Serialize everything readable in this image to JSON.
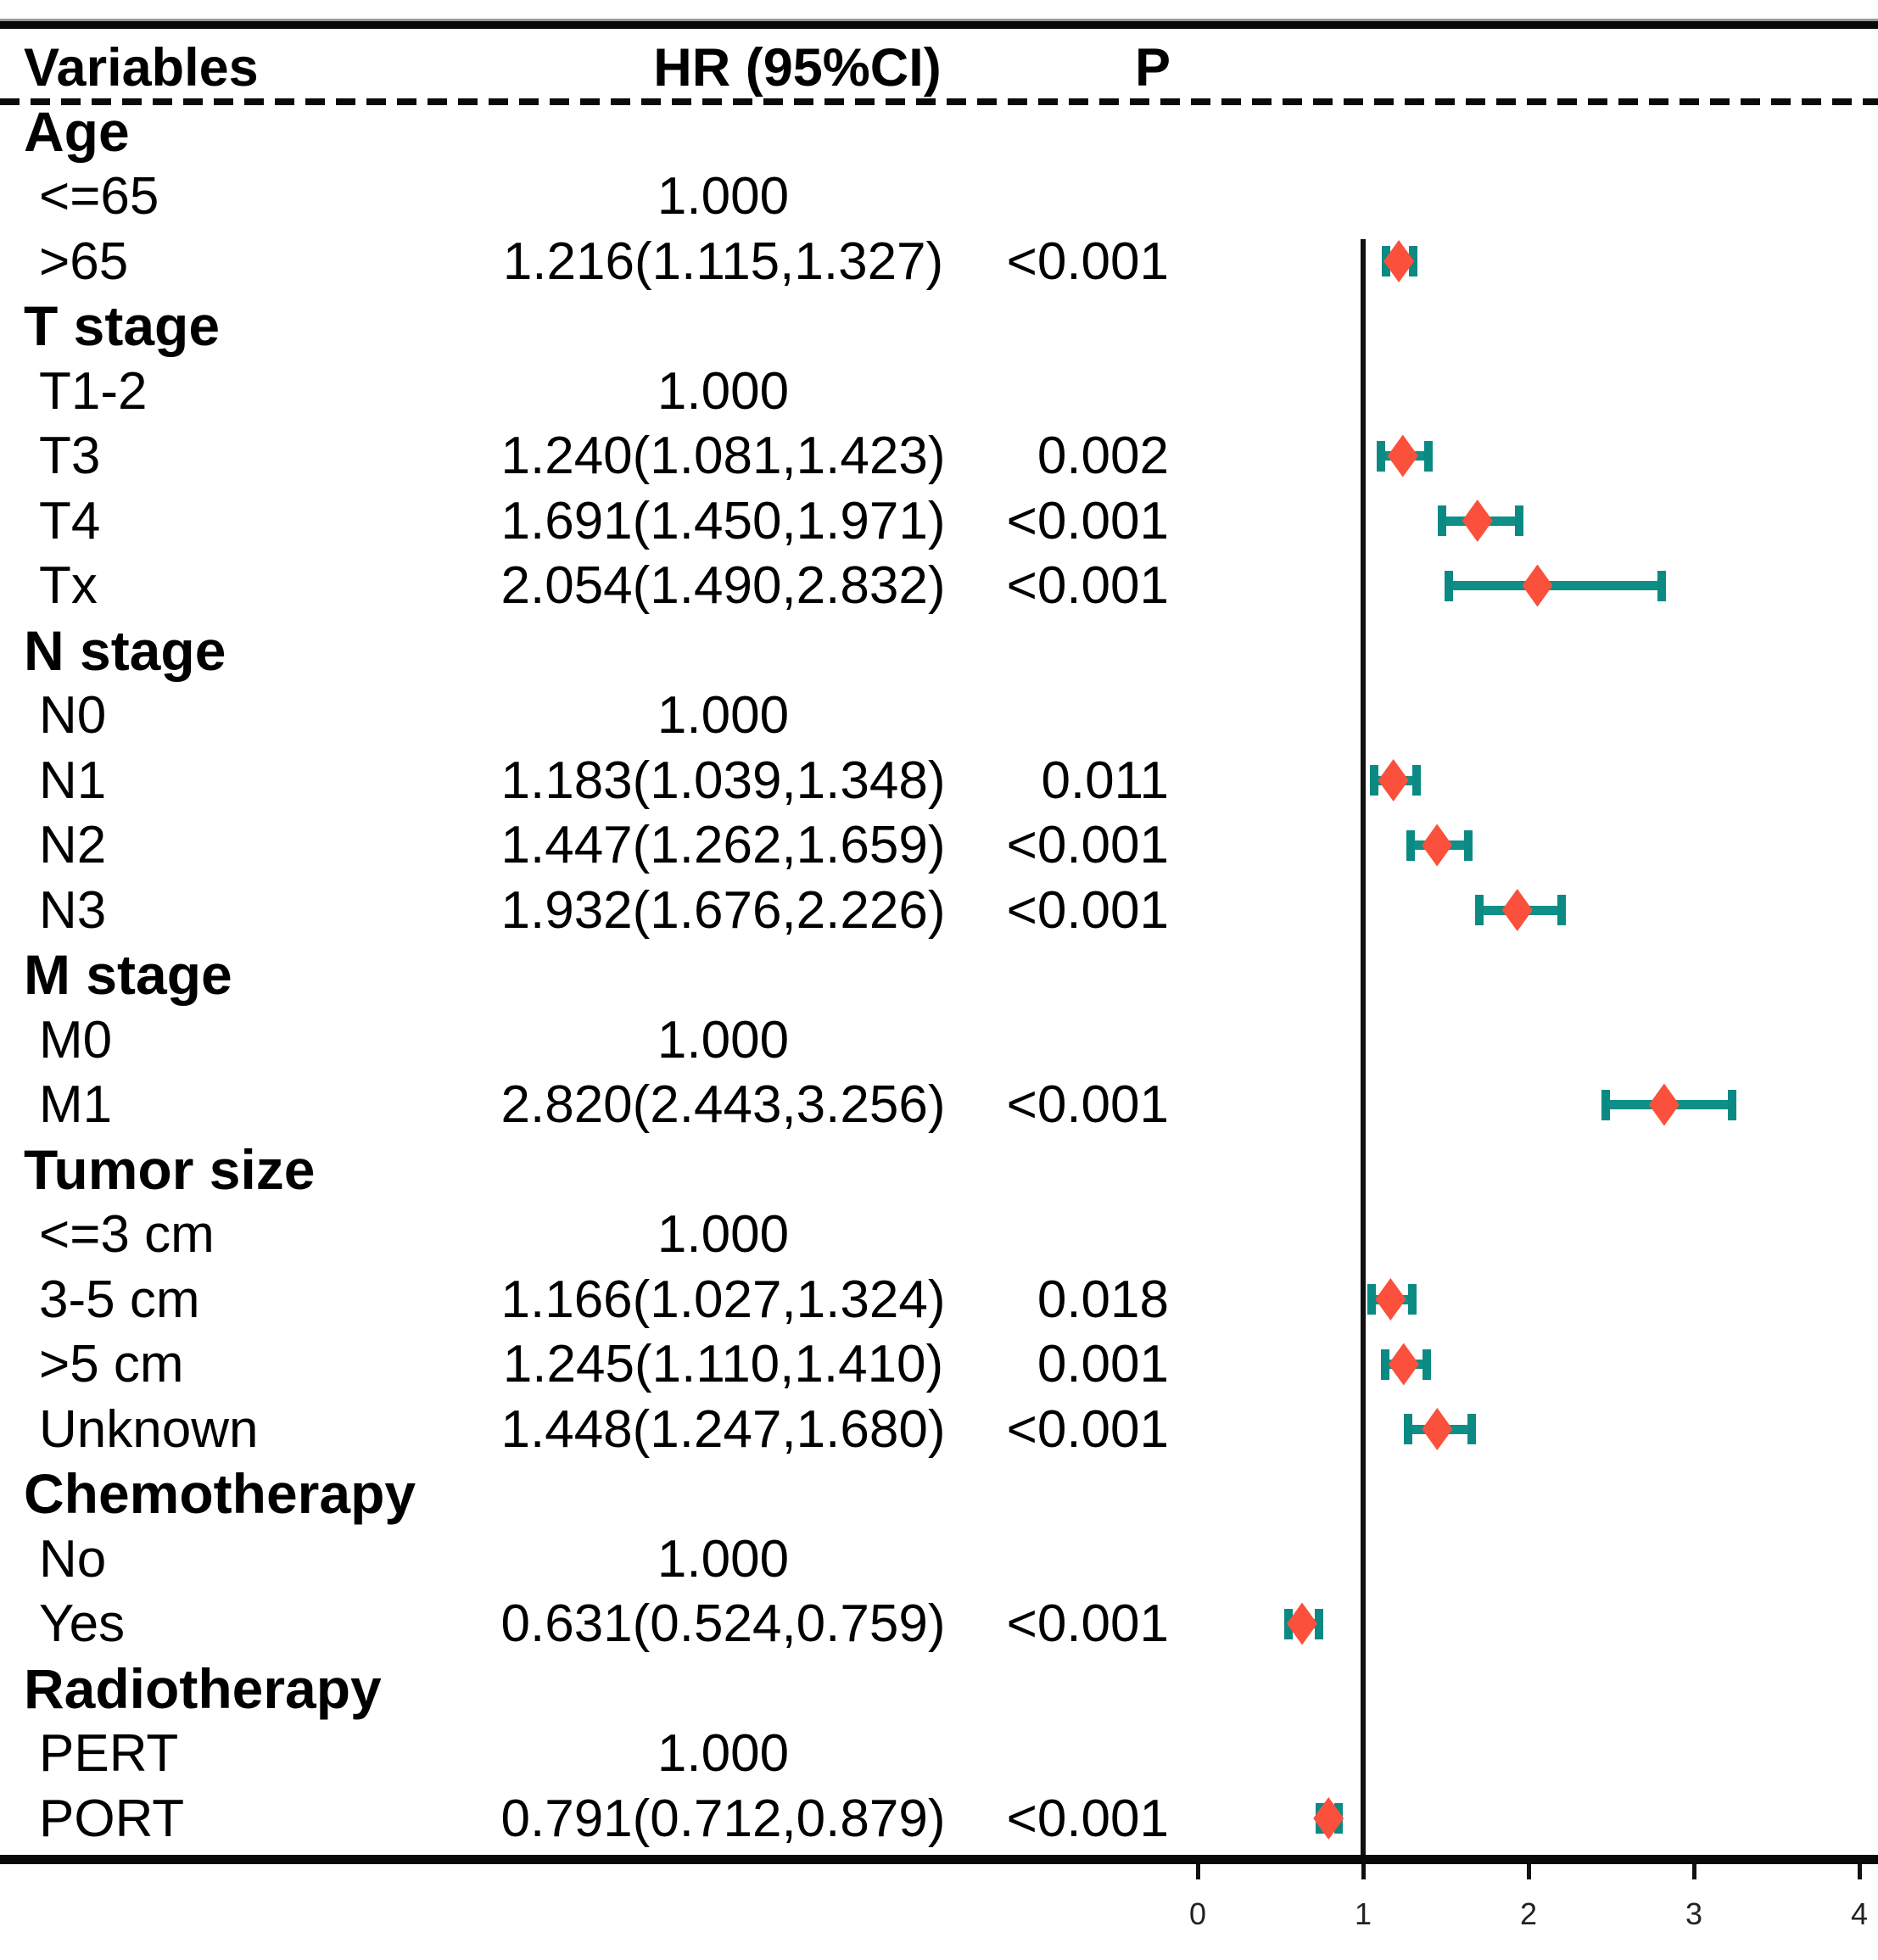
{
  "header": {
    "variables": "Variables",
    "hr": "HR (95%CI)",
    "p": "P"
  },
  "axis": {
    "ticks": [
      "0",
      "1",
      "2",
      "3",
      "4"
    ],
    "min": 0,
    "max": 4,
    "reference_line": 1
  },
  "colors": {
    "ci_bar": "#0E8F88",
    "ci_cap": "#0B8A83",
    "diamond": "#FB503C",
    "rule": "#0a0a0a"
  },
  "rows": [
    {
      "type": "section",
      "label": "Age"
    },
    {
      "type": "item",
      "label": "<=65",
      "hr": "1.000",
      "p": ""
    },
    {
      "type": "item",
      "label": ">65",
      "hr": "1.216(1.115,1.327)",
      "p": "<0.001",
      "est": 1.216,
      "lo": 1.115,
      "hi": 1.327
    },
    {
      "type": "section",
      "label": "T stage"
    },
    {
      "type": "item",
      "label": "T1-2",
      "hr": "1.000",
      "p": ""
    },
    {
      "type": "item",
      "label": "T3",
      "hr": "1.240(1.081,1.423)",
      "p": "0.002",
      "est": 1.24,
      "lo": 1.081,
      "hi": 1.423
    },
    {
      "type": "item",
      "label": "T4",
      "hr": "1.691(1.450,1.971)",
      "p": "<0.001",
      "est": 1.691,
      "lo": 1.45,
      "hi": 1.971
    },
    {
      "type": "item",
      "label": "Tx",
      "hr": "2.054(1.490,2.832)",
      "p": "<0.001",
      "est": 2.054,
      "lo": 1.49,
      "hi": 2.832
    },
    {
      "type": "section",
      "label": "N stage"
    },
    {
      "type": "item",
      "label": "N0",
      "hr": "1.000",
      "p": ""
    },
    {
      "type": "item",
      "label": "N1",
      "hr": "1.183(1.039,1.348)",
      "p": "0.011",
      "est": 1.183,
      "lo": 1.039,
      "hi": 1.348
    },
    {
      "type": "item",
      "label": "N2",
      "hr": "1.447(1.262,1.659)",
      "p": "<0.001",
      "est": 1.447,
      "lo": 1.262,
      "hi": 1.659
    },
    {
      "type": "item",
      "label": "N3",
      "hr": "1.932(1.676,2.226)",
      "p": "<0.001",
      "est": 1.932,
      "lo": 1.676,
      "hi": 2.226
    },
    {
      "type": "section",
      "label": "M stage"
    },
    {
      "type": "item",
      "label": "M0",
      "hr": "1.000",
      "p": ""
    },
    {
      "type": "item",
      "label": "M1",
      "hr": "2.820(2.443,3.256)",
      "p": "<0.001",
      "est": 2.82,
      "lo": 2.443,
      "hi": 3.256
    },
    {
      "type": "section",
      "label": "Tumor size"
    },
    {
      "type": "item",
      "label": "<=3 cm",
      "hr": "1.000",
      "p": ""
    },
    {
      "type": "item",
      "label": "3-5 cm",
      "hr": "1.166(1.027,1.324)",
      "p": "0.018",
      "est": 1.166,
      "lo": 1.027,
      "hi": 1.324
    },
    {
      "type": "item",
      "label": ">5 cm",
      "hr": "1.245(1.110,1.410)",
      "p": "0.001",
      "est": 1.245,
      "lo": 1.11,
      "hi": 1.41
    },
    {
      "type": "item",
      "label": "Unknown",
      "hr": "1.448(1.247,1.680)",
      "p": "<0.001",
      "est": 1.448,
      "lo": 1.247,
      "hi": 1.68
    },
    {
      "type": "section",
      "label": "Chemotherapy"
    },
    {
      "type": "item",
      "label": "No",
      "hr": "1.000",
      "p": ""
    },
    {
      "type": "item",
      "label": "Yes",
      "hr": "0.631(0.524,0.759)",
      "p": "<0.001",
      "est": 0.631,
      "lo": 0.524,
      "hi": 0.759
    },
    {
      "type": "section",
      "label": "Radiotherapy"
    },
    {
      "type": "item",
      "label": "PERT",
      "hr": "1.000",
      "p": ""
    },
    {
      "type": "item",
      "label": "PORT",
      "hr": "0.791(0.712,0.879)",
      "p": "<0.001",
      "est": 0.791,
      "lo": 0.712,
      "hi": 0.879
    }
  ],
  "chart_data": {
    "type": "scatter",
    "subtype": "forest-plot",
    "title": "",
    "xlabel": "",
    "ylabel": "",
    "xlim": [
      0,
      4
    ],
    "x_ticks": [
      0,
      1,
      2,
      3,
      4
    ],
    "reference_line_x": 1,
    "grid": false,
    "legend": "none",
    "columns": [
      "Variables",
      "HR (95%CI)",
      "P"
    ],
    "points": [
      {
        "group": "Age",
        "label": ">65",
        "hr": 1.216,
        "ci_low": 1.115,
        "ci_high": 1.327,
        "p": "<0.001"
      },
      {
        "group": "T stage",
        "label": "T3",
        "hr": 1.24,
        "ci_low": 1.081,
        "ci_high": 1.423,
        "p": "0.002"
      },
      {
        "group": "T stage",
        "label": "T4",
        "hr": 1.691,
        "ci_low": 1.45,
        "ci_high": 1.971,
        "p": "<0.001"
      },
      {
        "group": "T stage",
        "label": "Tx",
        "hr": 2.054,
        "ci_low": 1.49,
        "ci_high": 2.832,
        "p": "<0.001"
      },
      {
        "group": "N stage",
        "label": "N1",
        "hr": 1.183,
        "ci_low": 1.039,
        "ci_high": 1.348,
        "p": "0.011"
      },
      {
        "group": "N stage",
        "label": "N2",
        "hr": 1.447,
        "ci_low": 1.262,
        "ci_high": 1.659,
        "p": "<0.001"
      },
      {
        "group": "N stage",
        "label": "N3",
        "hr": 1.932,
        "ci_low": 1.676,
        "ci_high": 2.226,
        "p": "<0.001"
      },
      {
        "group": "M stage",
        "label": "M1",
        "hr": 2.82,
        "ci_low": 2.443,
        "ci_high": 3.256,
        "p": "<0.001"
      },
      {
        "group": "Tumor size",
        "label": "3-5 cm",
        "hr": 1.166,
        "ci_low": 1.027,
        "ci_high": 1.324,
        "p": "0.018"
      },
      {
        "group": "Tumor size",
        "label": ">5 cm",
        "hr": 1.245,
        "ci_low": 1.11,
        "ci_high": 1.41,
        "p": "0.001"
      },
      {
        "group": "Tumor size",
        "label": "Unknown",
        "hr": 1.448,
        "ci_low": 1.247,
        "ci_high": 1.68,
        "p": "<0.001"
      },
      {
        "group": "Chemotherapy",
        "label": "Yes",
        "hr": 0.631,
        "ci_low": 0.524,
        "ci_high": 0.759,
        "p": "<0.001"
      },
      {
        "group": "Radiotherapy",
        "label": "PORT",
        "hr": 0.791,
        "ci_low": 0.712,
        "ci_high": 0.879,
        "p": "<0.001"
      },
      {
        "group": "Age",
        "label": "<=65",
        "hr": 1.0,
        "reference": true
      },
      {
        "group": "T stage",
        "label": "T1-2",
        "hr": 1.0,
        "reference": true
      },
      {
        "group": "N stage",
        "label": "N0",
        "hr": 1.0,
        "reference": true
      },
      {
        "group": "M stage",
        "label": "M0",
        "hr": 1.0,
        "reference": true
      },
      {
        "group": "Tumor size",
        "label": "<=3 cm",
        "hr": 1.0,
        "reference": true
      },
      {
        "group": "Chemotherapy",
        "label": "No",
        "hr": 1.0,
        "reference": true
      },
      {
        "group": "Radiotherapy",
        "label": "PERT",
        "hr": 1.0,
        "reference": true
      }
    ]
  }
}
